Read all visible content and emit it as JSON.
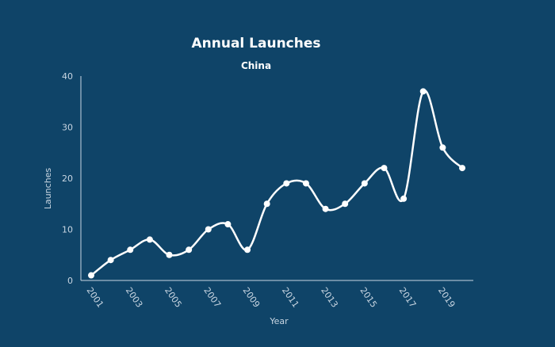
{
  "chart_data": {
    "type": "line",
    "title": "Annual Launches",
    "subtitle": "China",
    "xlabel": "Year",
    "ylabel": "Launches",
    "x": [
      2001,
      2002,
      2003,
      2004,
      2005,
      2006,
      2007,
      2008,
      2009,
      2010,
      2011,
      2012,
      2013,
      2014,
      2015,
      2016,
      2017,
      2018,
      2019,
      2020
    ],
    "x_tick_labels": [
      "2001",
      "2003",
      "2005",
      "2007",
      "2009",
      "2011",
      "2013",
      "2015",
      "2017",
      "2019"
    ],
    "y_ticks": [
      "0",
      "10",
      "20",
      "30",
      "40"
    ],
    "ylim": [
      0,
      40
    ],
    "series": [
      {
        "values": [
          1,
          4,
          6,
          8,
          5,
          6,
          10,
          11,
          6,
          15,
          19,
          19,
          14,
          15,
          19,
          22,
          16,
          37,
          26,
          22
        ]
      }
    ],
    "grid": false,
    "colors": {
      "background": "#0f4468",
      "line": "#ffffff",
      "text": "#c9d6e2"
    }
  }
}
